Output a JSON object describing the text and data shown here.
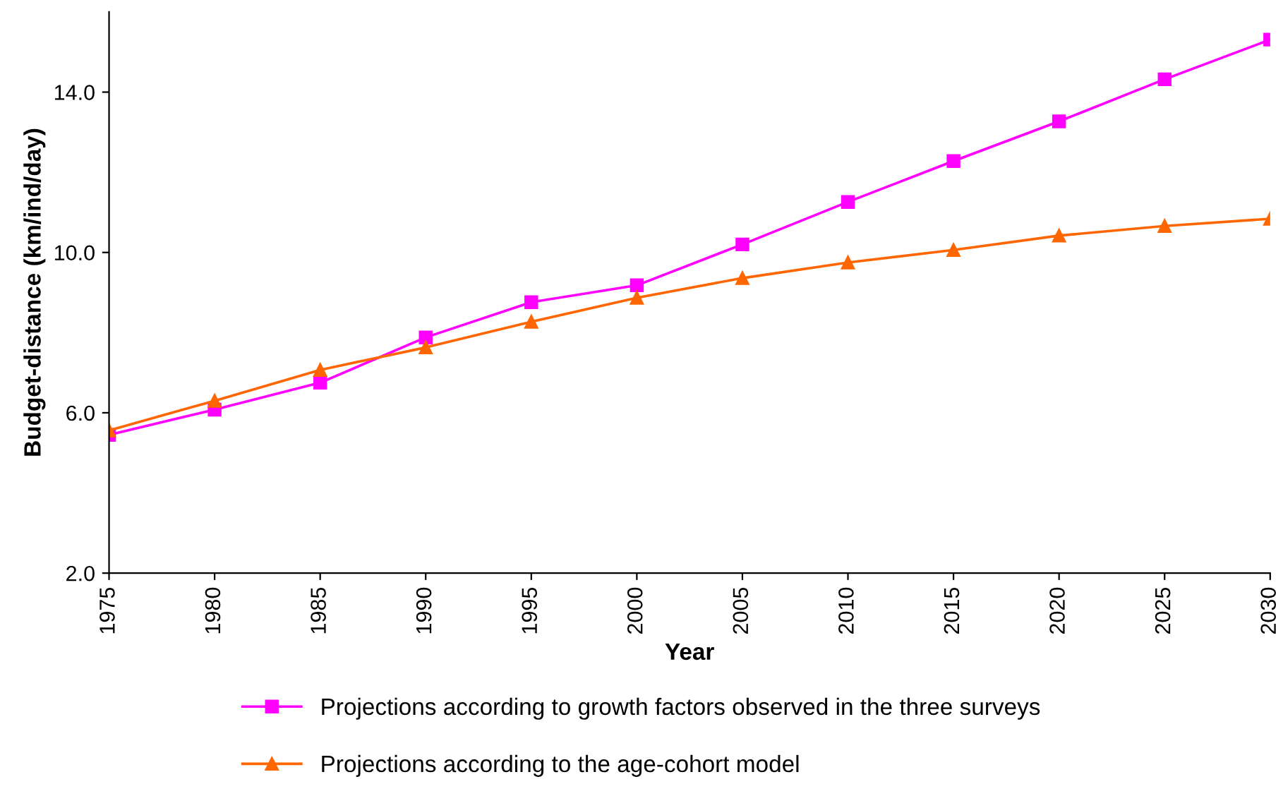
{
  "chart_data": {
    "type": "line",
    "xlabel": "Year",
    "ylabel": "Budget-distance (km/ind/day)",
    "x": [
      1975,
      1980,
      1985,
      1990,
      1995,
      2000,
      2005,
      2010,
      2015,
      2020,
      2025,
      2030
    ],
    "series": [
      {
        "name": "Projections according to growth factors observed in the three surveys",
        "color": "#ff00ff",
        "marker": "square",
        "values": [
          5.45,
          6.08,
          6.75,
          7.88,
          8.76,
          9.18,
          10.2,
          11.26,
          12.28,
          13.27,
          14.32,
          15.31
        ]
      },
      {
        "name": "Projections according to the age-cohort model",
        "color": "#ff6600",
        "marker": "triangle",
        "values": [
          5.56,
          6.3,
          7.07,
          7.63,
          8.27,
          8.87,
          9.36,
          9.75,
          10.06,
          10.42,
          10.66,
          10.84
        ]
      }
    ],
    "xlim": [
      1975,
      2030
    ],
    "xticks": [
      1975,
      1980,
      1985,
      1990,
      1995,
      2000,
      2005,
      2010,
      2015,
      2020,
      2025,
      2030
    ],
    "ylim": [
      2,
      16
    ],
    "yticks": [
      {
        "value": 2,
        "label": "2.0"
      },
      {
        "value": 6,
        "label": "6.0"
      },
      {
        "value": 10,
        "label": "10.0"
      },
      {
        "value": 14,
        "label": "14.0"
      }
    ],
    "grid": false,
    "legend": "bottom",
    "line_style": "solid"
  }
}
